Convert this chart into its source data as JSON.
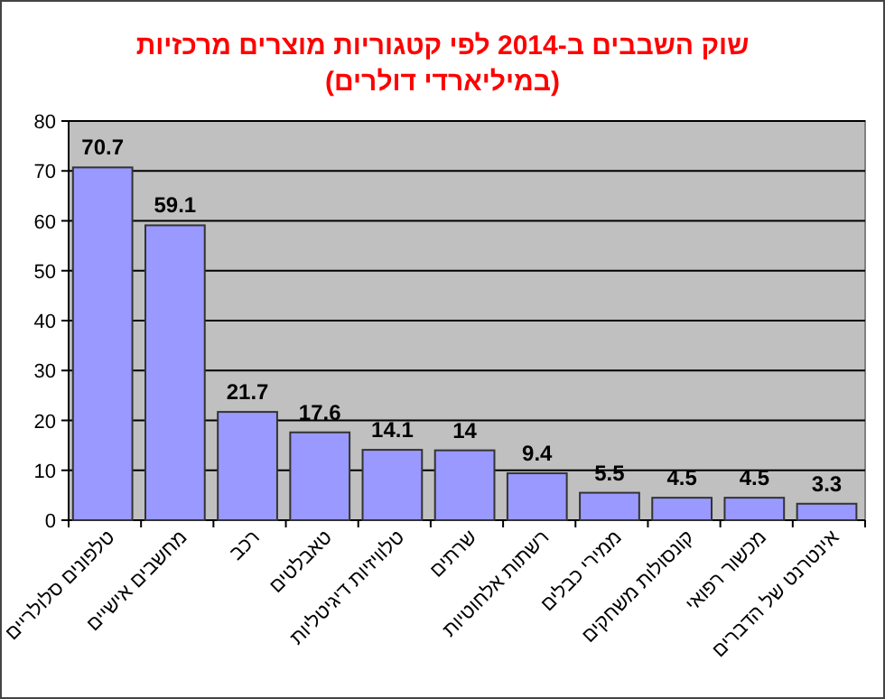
{
  "chart_data": {
    "type": "bar",
    "title": "שוק השבבים ב-2014 לפי קטגוריות מוצרים מרכזיות",
    "subtitle": "(במיליארדי דולרים)",
    "categories": [
      "טלפונים סלולריים",
      "מחשבים אישיים",
      "רכב",
      "טאבלטים",
      "טלוויזיות דיגיטליות",
      "שרתים",
      "רשתות אלחוטיות",
      "ממירי כבלים",
      "קונסולות משחקים",
      "מכשור רפואי",
      "אינטרנט של הדברים"
    ],
    "values": [
      70.7,
      59.1,
      21.7,
      17.6,
      14.1,
      14,
      9.4,
      5.5,
      4.5,
      4.5,
      3.3
    ],
    "color": "#9999ff",
    "ylim": [
      0,
      80
    ],
    "yticks": [
      0,
      10,
      20,
      30,
      40,
      50,
      60,
      70,
      80
    ],
    "grid": "y",
    "data_labels": true
  }
}
